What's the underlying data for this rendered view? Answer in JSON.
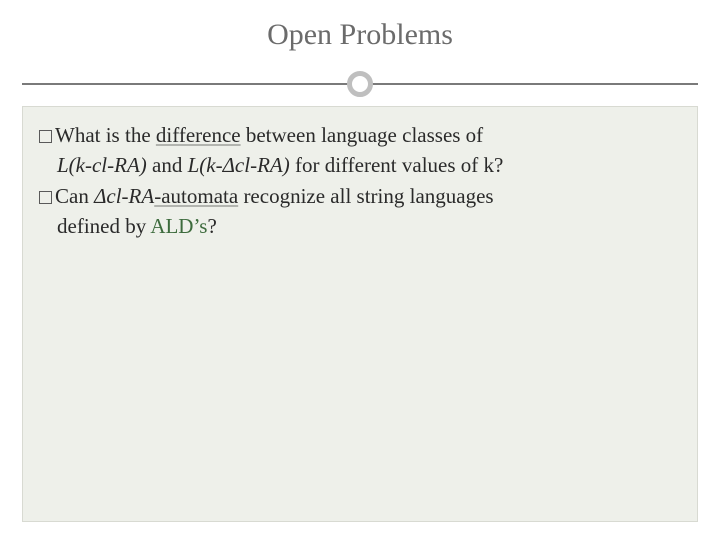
{
  "slide": {
    "title": "Open Problems",
    "title_color": "#6b6b6b",
    "title_fontsize": 30,
    "divider": {
      "line_color": "#7a7a7a",
      "circle_border_color": "#bfbfbf",
      "circle_border_width": 5
    },
    "content_background": "#eef0ea",
    "content_border": "#d8dad2",
    "body_fontsize": 21,
    "bullets": [
      {
        "parts": [
          {
            "text": "What is the ",
            "style": "plain"
          },
          {
            "text": "difference",
            "style": "underline"
          },
          {
            "text": " between language classes of",
            "style": "plain"
          }
        ],
        "cont_parts": [
          {
            "text": "L(k-cl-RA)",
            "style": "italic"
          },
          {
            "text": " and ",
            "style": "plain"
          },
          {
            "text": "L(k-Δcl-RA)",
            "style": "italic"
          },
          {
            "text": " for different values of k?",
            "style": "plain"
          }
        ]
      },
      {
        "parts": [
          {
            "text": "Can ",
            "style": "plain"
          },
          {
            "text": "Δcl-RA",
            "style": "italic"
          },
          {
            "text": "-automata",
            "style": "underline"
          },
          {
            "text": " recognize all string languages",
            "style": "plain"
          }
        ],
        "cont_parts": [
          {
            "text": "defined by ",
            "style": "plain"
          },
          {
            "text": "ALD’s",
            "style": "green"
          },
          {
            "text": "?",
            "style": "plain"
          }
        ]
      }
    ]
  }
}
